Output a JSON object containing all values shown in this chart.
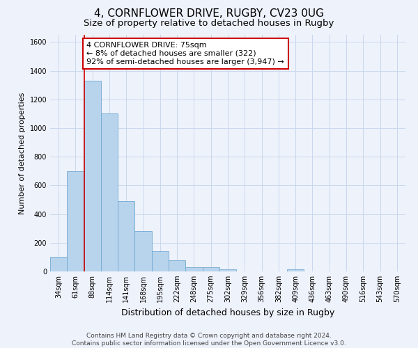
{
  "title": "4, CORNFLOWER DRIVE, RUGBY, CV23 0UG",
  "subtitle": "Size of property relative to detached houses in Rugby",
  "xlabel": "Distribution of detached houses by size in Rugby",
  "ylabel": "Number of detached properties",
  "bar_labels": [
    "34sqm",
    "61sqm",
    "88sqm",
    "114sqm",
    "141sqm",
    "168sqm",
    "195sqm",
    "222sqm",
    "248sqm",
    "275sqm",
    "302sqm",
    "329sqm",
    "356sqm",
    "382sqm",
    "409sqm",
    "436sqm",
    "463sqm",
    "490sqm",
    "516sqm",
    "543sqm",
    "570sqm"
  ],
  "bar_values": [
    100,
    700,
    1330,
    1100,
    490,
    280,
    140,
    80,
    30,
    30,
    15,
    0,
    0,
    0,
    15,
    0,
    0,
    0,
    0,
    0,
    0
  ],
  "bar_color": "#b8d4ed",
  "bar_edge_color": "#6fa8d0",
  "highlight_line_color": "#cc0000",
  "annotation_text": "4 CORNFLOWER DRIVE: 75sqm\n← 8% of detached houses are smaller (322)\n92% of semi-detached houses are larger (3,947) →",
  "annotation_box_color": "white",
  "annotation_box_edgecolor": "#cc0000",
  "ylim": [
    0,
    1650
  ],
  "yticks": [
    0,
    200,
    400,
    600,
    800,
    1000,
    1200,
    1400,
    1600
  ],
  "grid_color": "#c8d8ec",
  "background_color": "#eef2fb",
  "footer_text": "Contains HM Land Registry data © Crown copyright and database right 2024.\nContains public sector information licensed under the Open Government Licence v3.0.",
  "title_fontsize": 11,
  "subtitle_fontsize": 9.5,
  "xlabel_fontsize": 9,
  "ylabel_fontsize": 8,
  "tick_fontsize": 7,
  "annotation_fontsize": 8,
  "footer_fontsize": 6.5,
  "line_x_index": 1.52
}
